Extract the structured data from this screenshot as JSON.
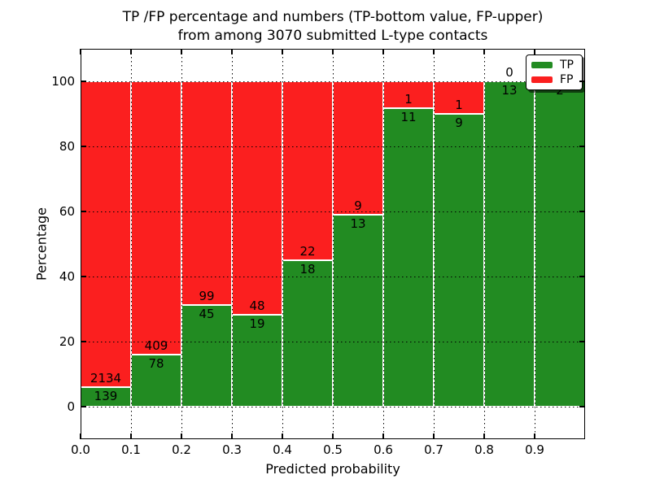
{
  "figure": {
    "title_line1": "TP /FP percentage and numbers (TP-bottom value, FP-upper)",
    "title_line2": "from among 3070 submitted L-type contacts",
    "xlabel": "Predicted probability",
    "ylabel": "Percentage"
  },
  "legend": {
    "items": [
      {
        "label": "TP",
        "color": "#228b22"
      },
      {
        "label": "FP",
        "color": "#fb1f1f"
      }
    ]
  },
  "chart_data": {
    "type": "bar",
    "stacked": true,
    "title": "TP /FP percentage and numbers (TP-bottom value, FP-upper) from among 3070 submitted L-type contacts",
    "xlabel": "Predicted probability",
    "ylabel": "Percentage",
    "bin_starts": [
      0.0,
      0.1,
      0.2,
      0.3,
      0.4,
      0.5,
      0.6,
      0.7,
      0.8,
      0.9
    ],
    "bin_width": 0.1,
    "series": [
      {
        "name": "TP",
        "color": "#228b22",
        "counts": [
          139,
          78,
          45,
          19,
          18,
          13,
          11,
          9,
          13,
          2
        ]
      },
      {
        "name": "FP",
        "color": "#fb1f1f",
        "counts": [
          2134,
          409,
          99,
          48,
          22,
          9,
          1,
          1,
          0,
          0
        ]
      }
    ],
    "tp_percent": [
      6.12,
      16.02,
      31.25,
      28.36,
      45.0,
      59.09,
      91.67,
      90.0,
      100.0,
      100.0
    ],
    "bars_total_percent": 100,
    "xlim": [
      0.0,
      1.0
    ],
    "ylim": [
      -10,
      110
    ],
    "yticks": [
      0,
      20,
      40,
      60,
      80,
      100
    ],
    "ytick_labels": [
      "0",
      "20",
      "40",
      "60",
      "80",
      "100"
    ],
    "xtick_labels": [
      "0.0",
      "0.1",
      "0.2",
      "0.3",
      "0.4",
      "0.5",
      "0.6",
      "0.7",
      "0.8",
      "0.9"
    ],
    "grid": "dotted, both axes, drawn above bars",
    "legend_position": "upper right"
  }
}
